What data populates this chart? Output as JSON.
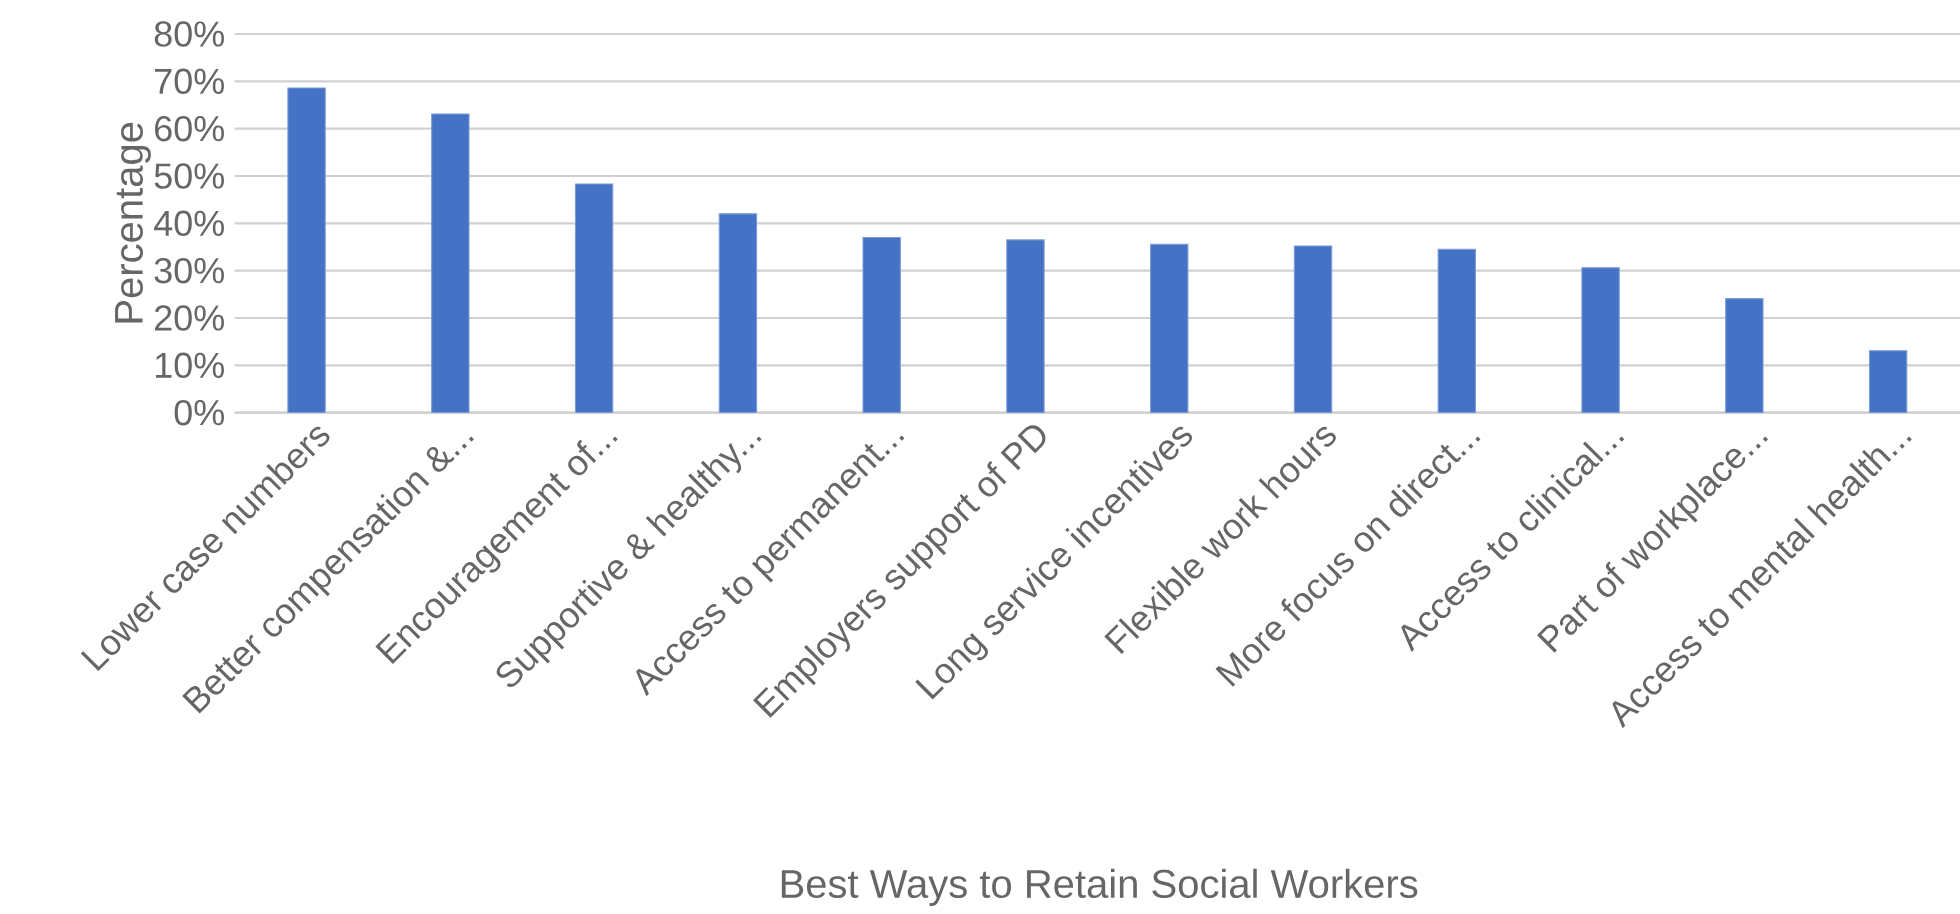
{
  "chart_data": {
    "type": "bar",
    "xlabel": "Best Ways to Retain Social Workers",
    "ylabel": "Percentage",
    "categories": [
      "Lower case numbers",
      "Better compensation &...",
      "Encouragement of...",
      "Supportive & healthy...",
      "Access to permanent...",
      "Employers support of PD",
      "Long service incentives",
      "Flexible work hours",
      "More focus on direct...",
      "Access to clinical...",
      "Part of workplace...",
      "Access to mental health..."
    ],
    "values": [
      68.6,
      63.1,
      48.3,
      42.0,
      37.0,
      36.5,
      35.6,
      35.2,
      34.5,
      30.6,
      24.1,
      13.1
    ],
    "color": "#4472c4",
    "ylim": [
      0,
      80
    ],
    "yticks": [
      {
        "value": 0,
        "label": "0%"
      },
      {
        "value": 10,
        "label": "10%"
      },
      {
        "value": 20,
        "label": "20%"
      },
      {
        "value": 30,
        "label": "30%"
      },
      {
        "value": 40,
        "label": "40%"
      },
      {
        "value": 50,
        "label": "50%"
      },
      {
        "value": 60,
        "label": "60%"
      },
      {
        "value": 70,
        "label": "70%"
      },
      {
        "value": 80,
        "label": "80%"
      }
    ],
    "grid": "y"
  }
}
